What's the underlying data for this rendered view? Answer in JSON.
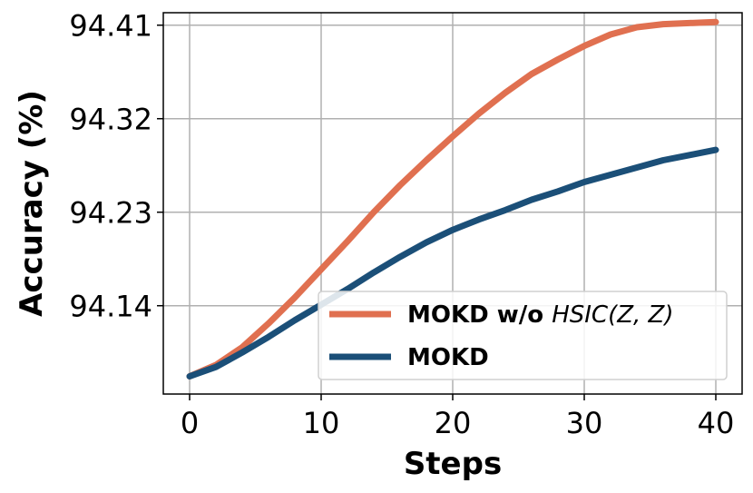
{
  "chart_data": {
    "type": "line",
    "xlabel": "Steps",
    "ylabel": "Accuracy (%)",
    "xlim": [
      -2,
      42
    ],
    "ylim": [
      94.055,
      94.422
    ],
    "xticks": [
      0,
      10,
      20,
      30,
      40
    ],
    "xtick_labels": [
      "0",
      "10",
      "20",
      "30",
      "40"
    ],
    "yticks": [
      94.14,
      94.23,
      94.32,
      94.41
    ],
    "ytick_labels": [
      "94.14",
      "94.23",
      "94.32",
      "94.41"
    ],
    "grid": true,
    "legend_position": "lower right",
    "series": [
      {
        "name_bold": "MOKD w/o ",
        "name_math": "HSIC(Z, Z)",
        "color": "#E07050",
        "x": [
          0,
          2,
          4,
          6,
          8,
          10,
          12,
          14,
          16,
          18,
          20,
          22,
          24,
          26,
          28,
          30,
          32,
          34,
          36,
          38,
          40
        ],
        "y": [
          94.072,
          94.083,
          94.1,
          94.123,
          94.148,
          94.175,
          94.202,
          94.23,
          94.256,
          94.28,
          94.303,
          94.325,
          94.345,
          94.363,
          94.377,
          94.39,
          94.401,
          94.408,
          94.411,
          94.412,
          94.413
        ]
      },
      {
        "name_bold": "MOKD",
        "name_math": "",
        "color": "#1B4F78",
        "x": [
          0,
          2,
          4,
          6,
          8,
          10,
          12,
          14,
          16,
          18,
          20,
          22,
          24,
          26,
          28,
          30,
          32,
          34,
          36,
          38,
          40
        ],
        "y": [
          94.072,
          94.081,
          94.095,
          94.11,
          94.126,
          94.141,
          94.156,
          94.172,
          94.187,
          94.201,
          94.213,
          94.223,
          94.232,
          94.242,
          94.25,
          94.259,
          94.266,
          94.273,
          94.28,
          94.285,
          94.29
        ]
      }
    ]
  }
}
